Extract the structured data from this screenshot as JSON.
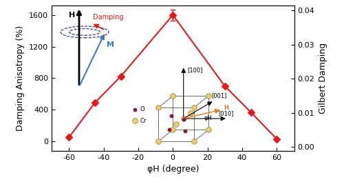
{
  "chart_data": {
    "type": "line",
    "xlabel": "φH (degree)",
    "ylabel": "Damping Anisotropy (%)",
    "y2label": "Gilbert Damping",
    "x": [
      -60,
      -45,
      -30,
      0,
      30,
      45,
      60
    ],
    "values": [
      50,
      490,
      825,
      1600,
      700,
      370,
      30
    ],
    "error": [
      null,
      null,
      null,
      70,
      null,
      null,
      null
    ],
    "color": "#e31a1c",
    "marker": "diamond",
    "line_style": "solid",
    "xlim": [
      -70,
      70
    ],
    "xticks": [
      -60,
      -40,
      -20,
      0,
      20,
      40,
      60
    ],
    "ylim": [
      -120,
      1720
    ],
    "yticks": [
      0,
      400,
      800,
      1200,
      1600
    ],
    "y2lim": [
      -0.0012,
      0.0415
    ],
    "y2ticks": [
      {
        "value": 0,
        "label": "0.00"
      },
      {
        "value": 0.01,
        "label": "0.01"
      },
      {
        "value": 0.02,
        "label": "0.02"
      },
      {
        "value": 0.03,
        "label": "0.03"
      },
      {
        "value": 0.04,
        "label": "0.04"
      }
    ],
    "annotations": {
      "field_vector": "H",
      "magnetization": "M",
      "damping": "Damping",
      "directions": [
        "[100]",
        "[001]",
        "[010]"
      ],
      "atoms": [
        "O",
        "Cr"
      ],
      "applied_field": "H",
      "angle": "φH"
    }
  }
}
